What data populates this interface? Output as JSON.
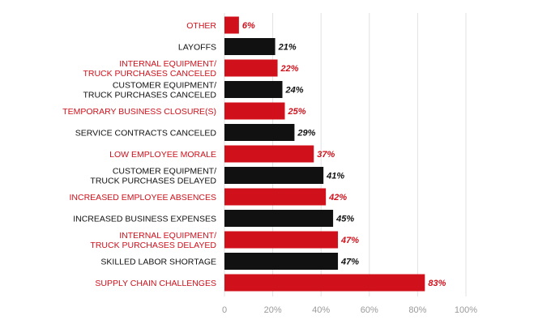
{
  "chart_data": {
    "type": "bar",
    "orientation": "horizontal",
    "categories": [
      [
        "OTHER"
      ],
      [
        "LAYOFFS"
      ],
      [
        "INTERNAL EQUIPMENT/",
        "TRUCK PURCHASES CANCELED"
      ],
      [
        "CUSTOMER EQUIPMENT/",
        "TRUCK PURCHASES CANCELED"
      ],
      [
        "TEMPORARY BUSINESS CLOSURE(S)"
      ],
      [
        "SERVICE CONTRACTS CANCELED"
      ],
      [
        "LOW EMPLOYEE MORALE"
      ],
      [
        "CUSTOMER EQUIPMENT/",
        "TRUCK PURCHASES DELAYED"
      ],
      [
        "INCREASED EMPLOYEE ABSENCES"
      ],
      [
        "INCREASED BUSINESS EXPENSES"
      ],
      [
        "INTERNAL EQUIPMENT/",
        "TRUCK PURCHASES DELAYED"
      ],
      [
        "SKILLED LABOR SHORTAGE"
      ],
      [
        "SUPPLY CHAIN CHALLENGES"
      ]
    ],
    "values": [
      6,
      21,
      22,
      24,
      25,
      29,
      37,
      41,
      42,
      45,
      47,
      47,
      83
    ],
    "value_labels": [
      "6%",
      "21%",
      "22%",
      "24%",
      "25%",
      "29%",
      "37%",
      "41%",
      "42%",
      "45%",
      "47%",
      "47%",
      "83%"
    ],
    "bar_colors": [
      "red",
      "black",
      "red",
      "black",
      "red",
      "black",
      "red",
      "black",
      "red",
      "black",
      "red",
      "black",
      "red"
    ],
    "xlim": [
      0,
      100
    ],
    "xticks": [
      0,
      20,
      40,
      60,
      80,
      100
    ],
    "xtick_labels": [
      "0",
      "20%",
      "40%",
      "60%",
      "80%",
      "100%"
    ],
    "grid": true,
    "title": "",
    "xlabel": "",
    "ylabel": ""
  },
  "colors": {
    "red": "#d0111b",
    "black": "#111111",
    "grid": "#e2e2e2",
    "tick_text": "#9a9a9a",
    "background": "#ffffff"
  }
}
